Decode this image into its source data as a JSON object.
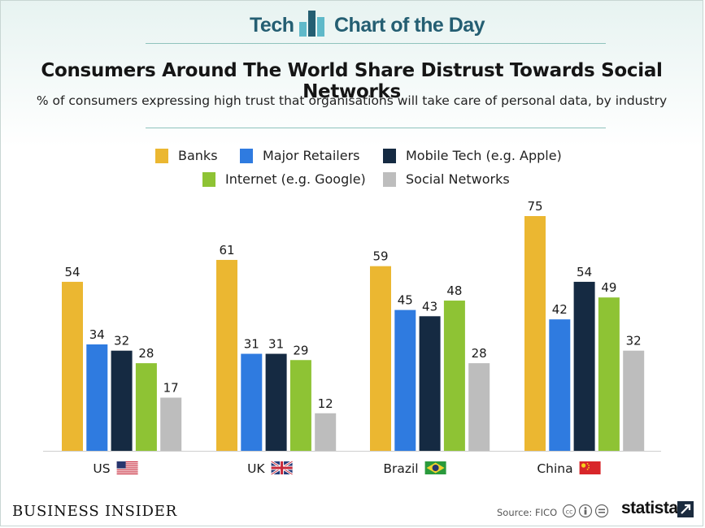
{
  "header": {
    "left": "Tech",
    "right": "Chart of the Day"
  },
  "colors": {
    "banks": "#ebb731",
    "retailers": "#2f7be0",
    "mobile": "#152a42",
    "internet": "#8ec334",
    "social": "#bdbdbd",
    "header_text": "#245e72"
  },
  "footer": {
    "publisher": "BUSINESS INSIDER",
    "source": "Source: FICO",
    "brand": "statista",
    "license_icons": [
      "cc-icon",
      "by-icon",
      "nd-icon"
    ]
  },
  "chart_data": {
    "type": "bar",
    "title": "Consumers Around The World Share Distrust Towards Social Networks",
    "subtitle": "% of consumers expressing high trust that organisations will take care of personal data, by industry",
    "categories": [
      "US",
      "UK",
      "Brazil",
      "China"
    ],
    "category_flags": [
      "us-flag-icon",
      "uk-flag-icon",
      "brazil-flag-icon",
      "china-flag-icon"
    ],
    "series": [
      {
        "name": "Banks",
        "values": [
          54,
          61,
          59,
          75
        ]
      },
      {
        "name": "Major Retailers",
        "values": [
          34,
          31,
          45,
          42
        ]
      },
      {
        "name": "Mobile Tech (e.g. Apple)",
        "values": [
          32,
          31,
          43,
          54
        ]
      },
      {
        "name": "Internet (e.g. Google)",
        "values": [
          28,
          29,
          48,
          49
        ]
      },
      {
        "name": "Social Networks",
        "values": [
          17,
          12,
          28,
          32
        ]
      }
    ],
    "ylim": [
      0,
      75
    ],
    "grid": false,
    "legend_position": "top",
    "xlabel": "",
    "ylabel": ""
  }
}
